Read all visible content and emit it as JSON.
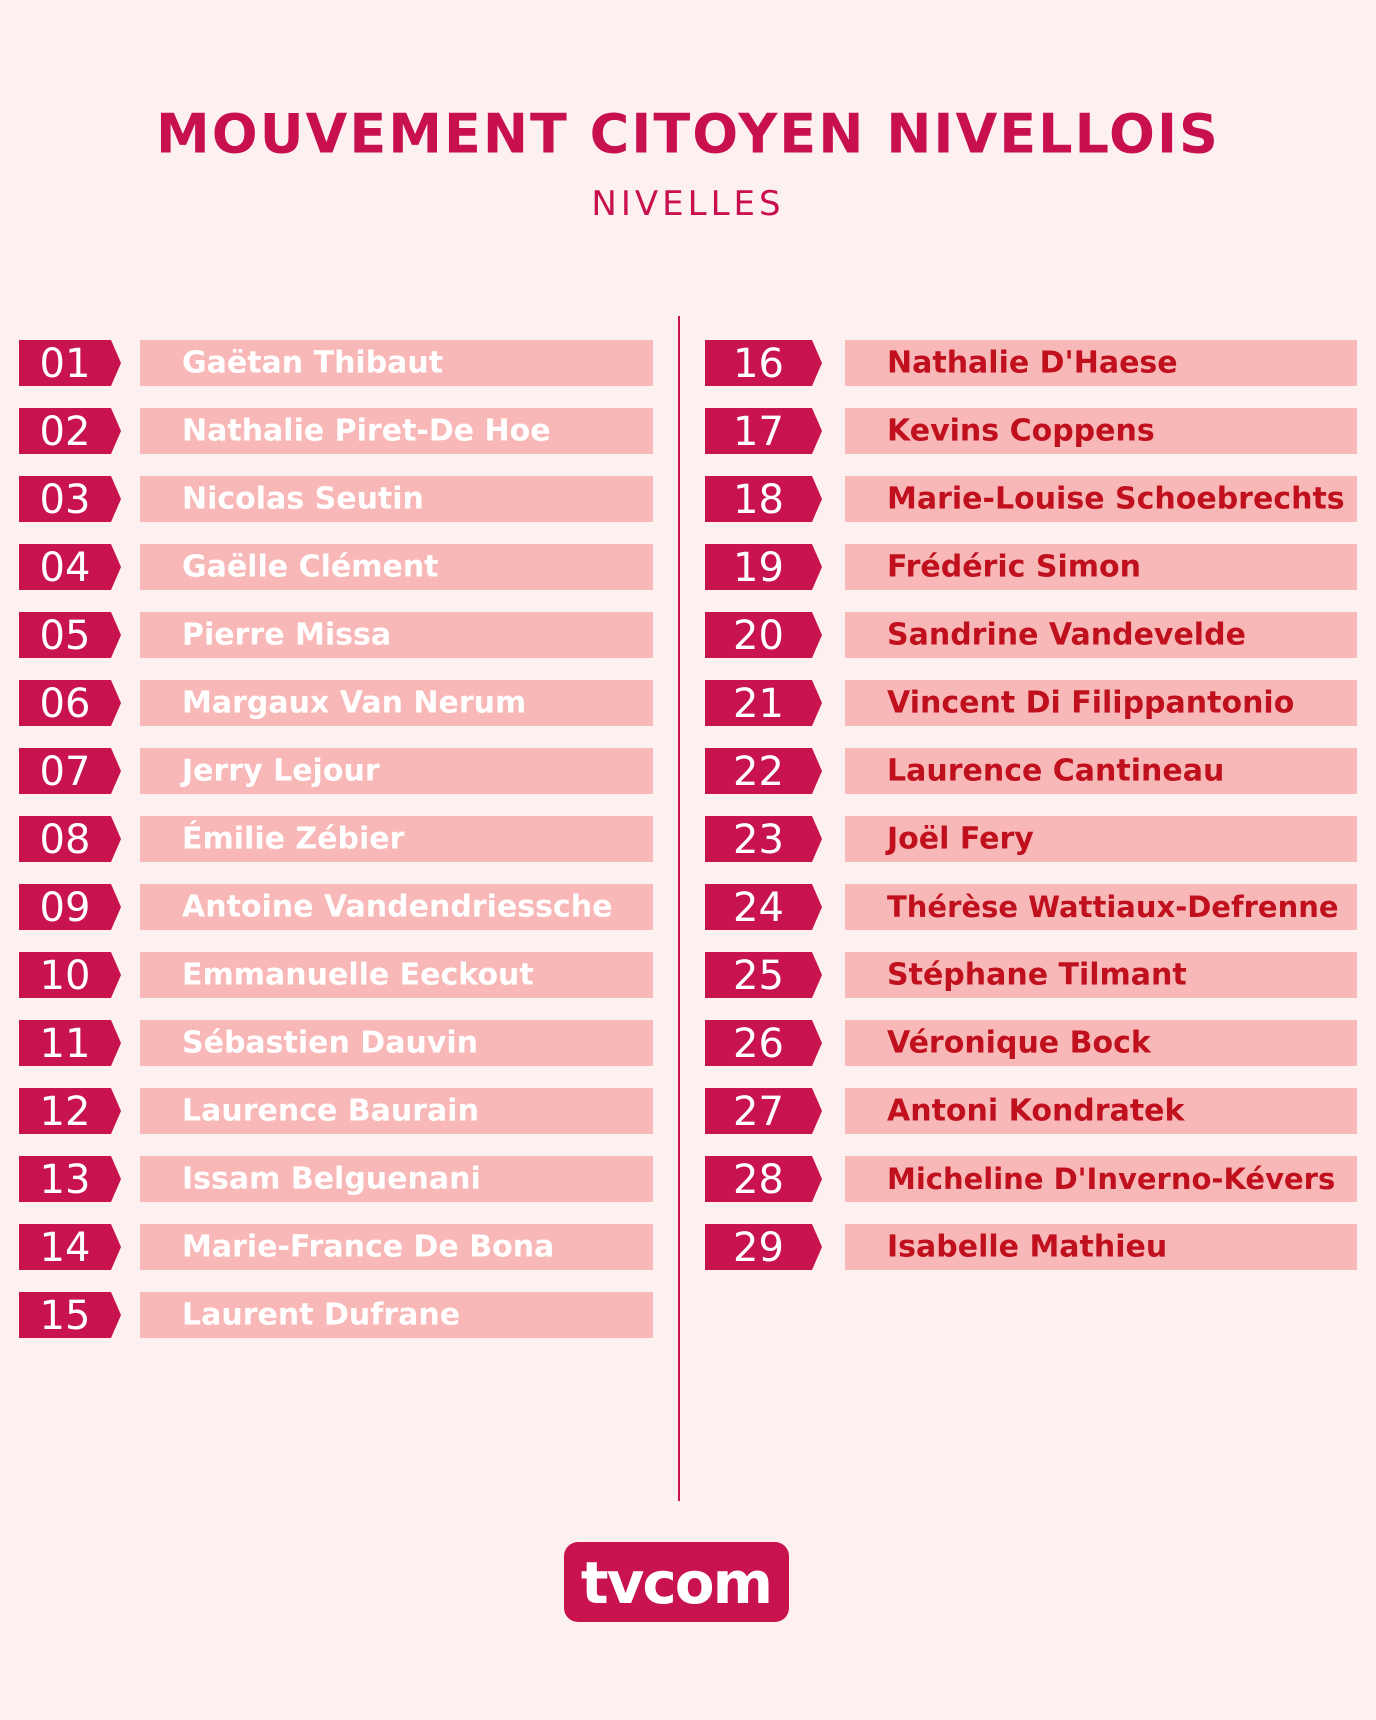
{
  "header": {
    "title": "MOUVEMENT CITOYEN NIVELLOIS",
    "subtitle": "NIVELLES"
  },
  "left_column": [
    {
      "number": "01",
      "name": "Gaëtan Thibaut"
    },
    {
      "number": "02",
      "name": "Nathalie Piret-De Hoe"
    },
    {
      "number": "03",
      "name": "Nicolas Seutin"
    },
    {
      "number": "04",
      "name": "Gaëlle Clément"
    },
    {
      "number": "05",
      "name": "Pierre Missa"
    },
    {
      "number": "06",
      "name": "Margaux Van Nerum"
    },
    {
      "number": "07",
      "name": "Jerry Lejour"
    },
    {
      "number": "08",
      "name": "Émilie Zébier"
    },
    {
      "number": "09",
      "name": "Antoine Vandendriessche"
    },
    {
      "number": "10",
      "name": "Emmanuelle Eeckout"
    },
    {
      "number": "11",
      "name": "Sébastien Dauvin"
    },
    {
      "number": "12",
      "name": "Laurence Baurain"
    },
    {
      "number": "13",
      "name": "Issam Belguenani"
    },
    {
      "number": "14",
      "name": "Marie-France De Bona"
    },
    {
      "number": "15",
      "name": "Laurent Dufrane"
    }
  ],
  "right_column": [
    {
      "number": "16",
      "name": "Nathalie D'Haese"
    },
    {
      "number": "17",
      "name": "Kevins Coppens"
    },
    {
      "number": "18",
      "name": "Marie-Louise Schoebrechts"
    },
    {
      "number": "19",
      "name": "Frédéric Simon"
    },
    {
      "number": "20",
      "name": "Sandrine Vandevelde"
    },
    {
      "number": "21",
      "name": "Vincent Di Filippantonio"
    },
    {
      "number": "22",
      "name": "Laurence Cantineau"
    },
    {
      "number": "23",
      "name": "Joël Fery"
    },
    {
      "number": "24",
      "name": "Thérèse Wattiaux-Defrenne"
    },
    {
      "number": "25",
      "name": "Stéphane Tilmant"
    },
    {
      "number": "26",
      "name": "Véronique Bock"
    },
    {
      "number": "27",
      "name": "Antoni Kondratek"
    },
    {
      "number": "28",
      "name": "Micheline D'Inverno-Kévers"
    },
    {
      "number": "29",
      "name": "Isabelle Mathieu"
    }
  ],
  "footer": {
    "logo": "tvcom"
  }
}
